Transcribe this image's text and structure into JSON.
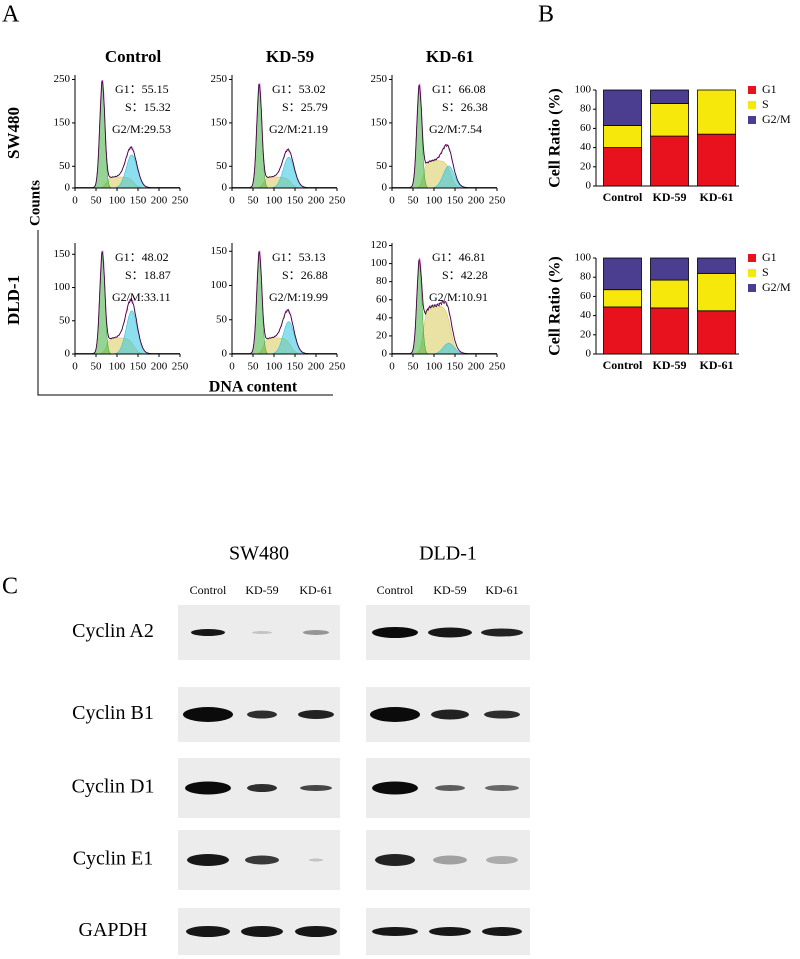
{
  "panel_letters": [
    "A",
    "B",
    "C"
  ],
  "panel_a": {
    "columns": [
      "Control",
      "KD-59",
      "KD-61"
    ],
    "rows": [
      "SW480",
      "DLD-1"
    ],
    "y_label": "Counts",
    "x_label": "DNA content",
    "phase_labels": [
      "G1：",
      "S：",
      "G2/M:"
    ],
    "plots": [
      {
        "xlim": [
          0,
          250
        ],
        "xticks": [
          0,
          50,
          100,
          150,
          200,
          250
        ],
        "ylim": [
          0,
          265
        ],
        "yticks": [
          0,
          50,
          150,
          250
        ],
        "stats": [
          55.15,
          15.32,
          29.53
        ]
      },
      {
        "xlim": [
          0,
          250
        ],
        "xticks": [
          0,
          50,
          100,
          150,
          200,
          250
        ],
        "ylim": [
          0,
          265
        ],
        "yticks": [
          0,
          50,
          150,
          250
        ],
        "stats": [
          53.02,
          25.79,
          21.19
        ]
      },
      {
        "xlim": [
          0,
          250
        ],
        "xticks": [
          0,
          50,
          100,
          150,
          200,
          250
        ],
        "ylim": [
          0,
          265
        ],
        "yticks": [
          0,
          50,
          150,
          250
        ],
        "stats": [
          66.08,
          26.38,
          7.54
        ]
      },
      {
        "xlim": [
          0,
          250
        ],
        "xticks": [
          0,
          50,
          100,
          150,
          200,
          250
        ],
        "ylim": [
          0,
          170
        ],
        "yticks": [
          0,
          50,
          100,
          150
        ],
        "stats": [
          48.02,
          18.87,
          33.11
        ]
      },
      {
        "xlim": [
          0,
          250
        ],
        "xticks": [
          0,
          50,
          100,
          150,
          200,
          250
        ],
        "ylim": [
          0,
          165
        ],
        "yticks": [
          0,
          50,
          100,
          150
        ],
        "stats": [
          53.13,
          26.88,
          19.99
        ]
      },
      {
        "xlim": [
          0,
          250
        ],
        "xticks": [
          0,
          50,
          100,
          150,
          200,
          250
        ],
        "ylim": [
          0,
          125
        ],
        "yticks": [
          0,
          20,
          40,
          60,
          80,
          100,
          120
        ],
        "stats": [
          46.81,
          42.28,
          10.91
        ]
      }
    ]
  },
  "chart_data": [
    {
      "type": "bar",
      "stacked": true,
      "y_label": "Cell Ratio (%)",
      "categories": [
        "Control",
        "KD-59",
        "KD-61"
      ],
      "series": [
        {
          "name": "G1",
          "color": "#e8121e",
          "values": [
            40,
            52,
            54
          ]
        },
        {
          "name": "S",
          "color": "#f7e80c",
          "values": [
            23,
            34,
            46
          ]
        },
        {
          "name": "G2/M",
          "color": "#4b3d8f",
          "values": [
            37,
            14,
            0
          ]
        }
      ],
      "ylim": [
        0,
        100
      ],
      "yticks": [
        0,
        20,
        40,
        60,
        80,
        100
      ]
    },
    {
      "type": "bar",
      "stacked": true,
      "y_label": "Cell Ratio (%)",
      "categories": [
        "Control",
        "KD-59",
        "KD-61"
      ],
      "series": [
        {
          "name": "G1",
          "color": "#e8121e",
          "values": [
            49,
            48,
            45
          ]
        },
        {
          "name": "S",
          "color": "#f7e80c",
          "values": [
            18,
            29,
            39
          ]
        },
        {
          "name": "G2/M",
          "color": "#4b3d8f",
          "values": [
            33,
            23,
            16
          ]
        }
      ],
      "ylim": [
        0,
        100
      ],
      "yticks": [
        0,
        20,
        40,
        60,
        80,
        100
      ]
    }
  ],
  "panel_c": {
    "cell_lines": [
      {
        "name": "SW480",
        "lanes": [
          "Control",
          "KD-59",
          "KD-61"
        ]
      },
      {
        "name": "DLD-1",
        "lanes": [
          "Control",
          "KD-59",
          "KD-61"
        ]
      }
    ],
    "proteins": [
      "Cyclin A2",
      "Cyclin B1",
      "Cyclin D1",
      "Cyclin E1",
      "GAPDH"
    ]
  }
}
